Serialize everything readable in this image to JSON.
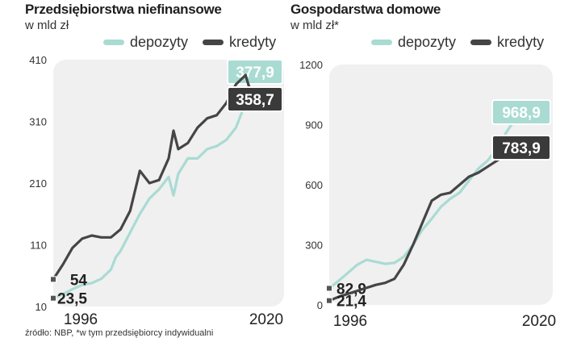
{
  "source_note": "źródło: NBP, *w tym przedsiębiorcy indywidualni",
  "colors": {
    "depozyty": "#a9dbd3",
    "kredyty": "#454545",
    "plot_bg": "#f0f0f0"
  },
  "chart_data": [
    {
      "type": "line",
      "title": "Przedsiębiorstwa niefinansowe",
      "subtitle": "w mld zł",
      "legend": [
        "depozyty",
        "kredyty"
      ],
      "legend_position": "top",
      "x_tick_labels": [
        "1996",
        "2020"
      ],
      "xlim": [
        1996,
        2020
      ],
      "y_ticks": [
        10,
        110,
        210,
        310,
        410
      ],
      "y_tick_labels": [
        "10",
        "110",
        "210",
        "310",
        "410"
      ],
      "ylim": [
        10,
        410
      ],
      "series": [
        {
          "name": "depozyty",
          "color": "#a9dbd3",
          "x": [
            1996.0,
            1997.0,
            1998.0,
            1999.0,
            2000.0,
            2001.0,
            2002.0,
            2002.5,
            2003.0,
            2004.0,
            2005.0,
            2006.0,
            2007.0,
            2008.0,
            2008.5,
            2009.0,
            2010.0,
            2011.0,
            2012.0,
            2013.0,
            2014.0,
            2015.0,
            2016.0,
            2016.5
          ],
          "y": [
            23.5,
            30,
            38,
            45,
            48,
            55,
            70,
            90,
            100,
            130,
            160,
            185,
            200,
            220,
            190,
            225,
            250,
            250,
            265,
            270,
            280,
            300,
            340,
            377.9
          ],
          "end_label": "377,9",
          "start_label": "23,5"
        },
        {
          "name": "kredyty",
          "color": "#454545",
          "x": [
            1996.0,
            1997.0,
            1998.0,
            1999.0,
            2000.0,
            2001.0,
            2002.0,
            2003.0,
            2004.0,
            2005.0,
            2006.0,
            2007.0,
            2008.0,
            2008.5,
            2009.0,
            2010.0,
            2011.0,
            2012.0,
            2013.0,
            2014.0,
            2015.0,
            2016.0,
            2016.5
          ],
          "y": [
            54,
            78,
            105,
            120,
            125,
            122,
            122,
            135,
            165,
            230,
            210,
            215,
            250,
            295,
            265,
            275,
            300,
            315,
            320,
            340,
            370,
            385,
            358.7
          ],
          "end_label": "358,7",
          "start_label": "54"
        }
      ]
    },
    {
      "type": "line",
      "title": "Gospodarstwa domowe",
      "subtitle": "w mld zł*",
      "legend": [
        "depozyty",
        "kredyty"
      ],
      "legend_position": "top",
      "x_tick_labels": [
        "1996",
        "2020"
      ],
      "xlim": [
        1996,
        2020
      ],
      "y_ticks": [
        0,
        300,
        600,
        900,
        1200
      ],
      "y_tick_labels": [
        "0",
        "300",
        "600",
        "900",
        "1200"
      ],
      "ylim": [
        0,
        1200
      ],
      "series": [
        {
          "name": "depozyty",
          "color": "#a9dbd3",
          "x": [
            1996.0,
            1997.0,
            1998.0,
            1999.0,
            2000.0,
            2001.0,
            2002.0,
            2003.0,
            2004.0,
            2005.0,
            2006.0,
            2007.0,
            2008.0,
            2009.0,
            2010.0,
            2011.0,
            2012.0,
            2013.0,
            2014.0,
            2015.0,
            2016.0,
            2016.5
          ],
          "y": [
            82.9,
            120,
            160,
            200,
            225,
            215,
            205,
            210,
            240,
            300,
            375,
            430,
            490,
            530,
            560,
            620,
            680,
            720,
            780,
            860,
            930,
            968.9
          ],
          "end_label": "968,9",
          "start_label": "82,9"
        },
        {
          "name": "kredyty",
          "color": "#454545",
          "x": [
            1996.0,
            1997.0,
            1998.0,
            1999.0,
            2000.0,
            2001.0,
            2002.0,
            2003.0,
            2004.0,
            2005.0,
            2006.0,
            2007.0,
            2008.0,
            2009.0,
            2010.0,
            2011.0,
            2012.0,
            2013.0,
            2014.0,
            2015.0,
            2016.0,
            2016.5
          ],
          "y": [
            21.4,
            40,
            55,
            70,
            85,
            100,
            110,
            130,
            200,
            300,
            410,
            520,
            550,
            560,
            600,
            640,
            660,
            690,
            720,
            750,
            780,
            783.9
          ],
          "end_label": "783,9",
          "start_label": "21,4"
        }
      ]
    }
  ]
}
